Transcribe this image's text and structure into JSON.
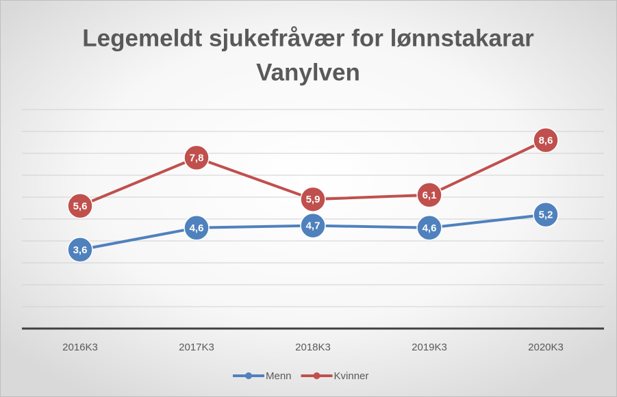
{
  "chart_data": {
    "type": "line",
    "title": [
      "Legemeldt sjukefråvær for lønnstakarar",
      "Vanylven"
    ],
    "categories": [
      "2016K3",
      "2017K3",
      "2018K3",
      "2019K3",
      "2020K3"
    ],
    "series": [
      {
        "name": "Menn",
        "color": "#4f81bd",
        "values": [
          3.6,
          4.6,
          4.7,
          4.6,
          5.2
        ],
        "value_labels": [
          "3,6",
          "4,6",
          "4,7",
          "4,6",
          "5,2"
        ]
      },
      {
        "name": "Kvinner",
        "color": "#c0504d",
        "values": [
          5.6,
          7.8,
          5.9,
          6.1,
          8.6
        ],
        "value_labels": [
          "5,6",
          "7,8",
          "5,9",
          "6,1",
          "8,6"
        ]
      }
    ],
    "ylim": [
      0,
      10
    ],
    "yticks": [
      0,
      1,
      2,
      3,
      4,
      5,
      6,
      7,
      8,
      9,
      10
    ],
    "grid": true,
    "legend": "bottom"
  }
}
